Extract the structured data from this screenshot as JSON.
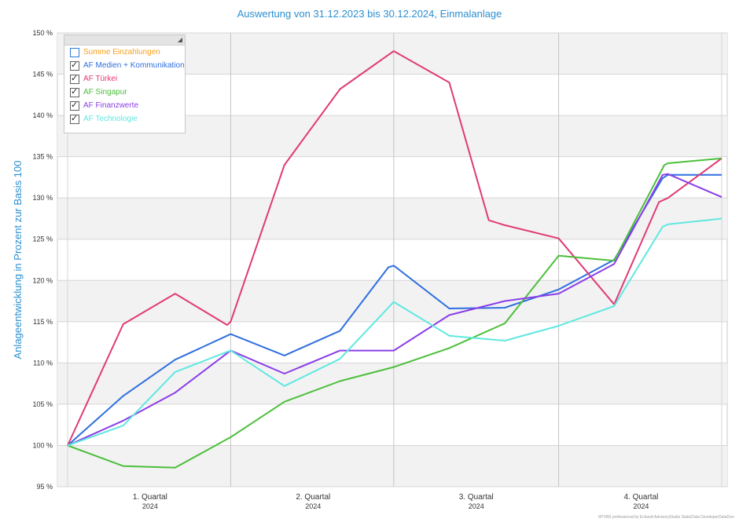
{
  "title": "Auswertung von 31.12.2023 bis 30.12.2024, Einmalanlage",
  "footer": "XPVBS professional by Eckardt AdvisoryStudio StaticData DeveloperDataOne",
  "legend_grip": "◢",
  "chart_data": {
    "type": "line",
    "title": "Auswertung von 31.12.2023 bis 30.12.2024, Einmalanlage",
    "ylabel": "Anlageentwicklung  in Prozent zur Basis 100",
    "xlabel": "",
    "ylim": [
      95,
      150
    ],
    "yticks": [
      95,
      100,
      105,
      110,
      115,
      120,
      125,
      130,
      135,
      140,
      145,
      150
    ],
    "ytick_labels": [
      "95 %",
      "100 %",
      "105 %",
      "110 %",
      "115 %",
      "120 %",
      "125 %",
      "130 %",
      "135 %",
      "140 %",
      "145 %",
      "150 %"
    ],
    "x_range": [
      "2023-12-31",
      "2024-12-30"
    ],
    "x_ticks": [
      {
        "label": "1. Quartal",
        "sublabel": "2024",
        "date": "2024-02-15"
      },
      {
        "label": "2. Quartal",
        "sublabel": "2024",
        "date": "2024-05-16"
      },
      {
        "label": "3. Quartal",
        "sublabel": "2024",
        "date": "2024-08-15"
      },
      {
        "label": "4. Quartal",
        "sublabel": "2024",
        "date": "2024-11-15"
      }
    ],
    "quarter_boundaries": [
      "2024-03-31",
      "2024-06-30",
      "2024-09-30"
    ],
    "grid": true,
    "legend_position": "top-left",
    "series": [
      {
        "name": "Summe Einzahlungen",
        "color": "#f5a020",
        "checked": false,
        "points": []
      },
      {
        "name": "AF Medien + Kommunikation",
        "color": "#2f6fe0",
        "checked": true,
        "points": [
          [
            "2023-12-31",
            100.0
          ],
          [
            "2024-01-31",
            106.0
          ],
          [
            "2024-02-29",
            110.4
          ],
          [
            "2024-03-29",
            113.3
          ],
          [
            "2024-03-31",
            113.5
          ],
          [
            "2024-04-30",
            110.9
          ],
          [
            "2024-05-31",
            113.9
          ],
          [
            "2024-06-27",
            121.6
          ],
          [
            "2024-06-30",
            121.8
          ],
          [
            "2024-07-31",
            116.6
          ],
          [
            "2024-08-31",
            116.7
          ],
          [
            "2024-09-30",
            118.9
          ],
          [
            "2024-10-31",
            122.5
          ],
          [
            "2024-11-27",
            132.4
          ],
          [
            "2024-11-30",
            132.8
          ],
          [
            "2024-12-30",
            132.8
          ]
        ]
      },
      {
        "name": "AF Türkei",
        "color": "#e03a74",
        "checked": true,
        "points": [
          [
            "2023-12-31",
            100.0
          ],
          [
            "2024-01-31",
            114.7
          ],
          [
            "2024-02-29",
            118.4
          ],
          [
            "2024-03-29",
            114.6
          ],
          [
            "2024-03-31",
            115.0
          ],
          [
            "2024-04-30",
            134.0
          ],
          [
            "2024-05-31",
            143.2
          ],
          [
            "2024-06-28",
            147.5
          ],
          [
            "2024-06-30",
            147.8
          ],
          [
            "2024-07-31",
            144.0
          ],
          [
            "2024-08-22",
            127.3
          ],
          [
            "2024-08-31",
            126.7
          ],
          [
            "2024-09-30",
            125.1
          ],
          [
            "2024-10-31",
            117.1
          ],
          [
            "2024-11-25",
            129.5
          ],
          [
            "2024-11-30",
            130.0
          ],
          [
            "2024-12-30",
            134.8
          ]
        ]
      },
      {
        "name": "AF Singapur",
        "color": "#4bbf3a",
        "checked": true,
        "points": [
          [
            "2023-12-31",
            100.0
          ],
          [
            "2024-01-31",
            97.5
          ],
          [
            "2024-02-29",
            97.3
          ],
          [
            "2024-03-31",
            101.0
          ],
          [
            "2024-04-30",
            105.3
          ],
          [
            "2024-05-31",
            107.8
          ],
          [
            "2024-06-30",
            109.5
          ],
          [
            "2024-07-31",
            111.8
          ],
          [
            "2024-08-31",
            114.8
          ],
          [
            "2024-09-30",
            123.0
          ],
          [
            "2024-10-31",
            122.4
          ],
          [
            "2024-11-28",
            134.0
          ],
          [
            "2024-11-30",
            134.2
          ],
          [
            "2024-12-30",
            134.8
          ]
        ]
      },
      {
        "name": "AF Finanzwerte",
        "color": "#8b3de8",
        "checked": true,
        "points": [
          [
            "2023-12-31",
            100.0
          ],
          [
            "2024-01-31",
            103.0
          ],
          [
            "2024-02-29",
            106.4
          ],
          [
            "2024-03-31",
            111.5
          ],
          [
            "2024-04-30",
            108.7
          ],
          [
            "2024-05-31",
            111.5
          ],
          [
            "2024-06-30",
            111.5
          ],
          [
            "2024-07-31",
            115.8
          ],
          [
            "2024-08-31",
            117.5
          ],
          [
            "2024-09-30",
            118.4
          ],
          [
            "2024-10-31",
            122.0
          ],
          [
            "2024-11-27",
            132.8
          ],
          [
            "2024-11-30",
            132.9
          ],
          [
            "2024-12-30",
            130.1
          ]
        ]
      },
      {
        "name": "AF Technologie",
        "color": "#5fe8e0",
        "checked": true,
        "points": [
          [
            "2023-12-31",
            100.0
          ],
          [
            "2024-01-31",
            102.4
          ],
          [
            "2024-02-29",
            108.9
          ],
          [
            "2024-03-31",
            111.5
          ],
          [
            "2024-04-30",
            107.2
          ],
          [
            "2024-05-31",
            110.5
          ],
          [
            "2024-06-30",
            117.4
          ],
          [
            "2024-07-31",
            113.3
          ],
          [
            "2024-08-31",
            112.7
          ],
          [
            "2024-09-30",
            114.5
          ],
          [
            "2024-10-31",
            116.9
          ],
          [
            "2024-11-27",
            126.5
          ],
          [
            "2024-11-30",
            126.8
          ],
          [
            "2024-12-30",
            127.5
          ]
        ]
      }
    ]
  }
}
